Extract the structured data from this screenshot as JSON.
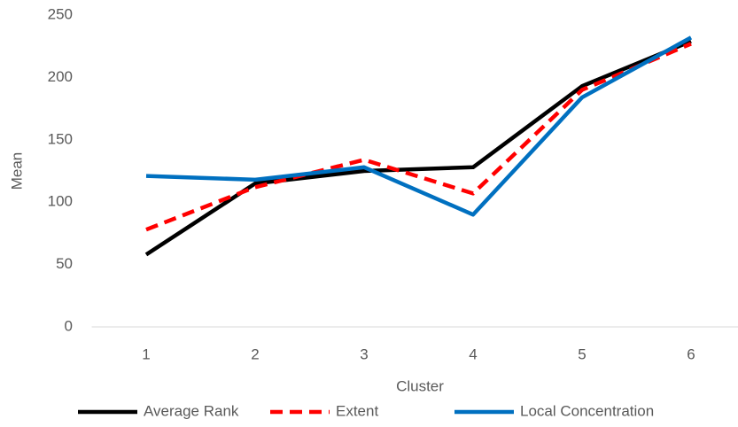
{
  "chart_data": {
    "type": "line",
    "x_label": "Cluster",
    "y_label": "Mean",
    "categories": [
      "1",
      "2",
      "3",
      "4",
      "5",
      "6"
    ],
    "series": [
      {
        "name": "Average Rank",
        "color": "#000000",
        "dash": false,
        "values": [
          58,
          115,
          125,
          128,
          193,
          229
        ]
      },
      {
        "name": "Extent",
        "color": "#ff0000",
        "dash": true,
        "values": [
          78,
          112,
          134,
          107,
          190,
          227
        ]
      },
      {
        "name": "Local Concentration",
        "color": "#0070c0",
        "dash": false,
        "values": [
          121,
          118,
          128,
          90,
          184,
          232
        ]
      }
    ],
    "ylim": [
      0,
      250
    ],
    "yticks": [
      0,
      50,
      100,
      150,
      200,
      250
    ],
    "grid": false,
    "legend": "bottom"
  }
}
